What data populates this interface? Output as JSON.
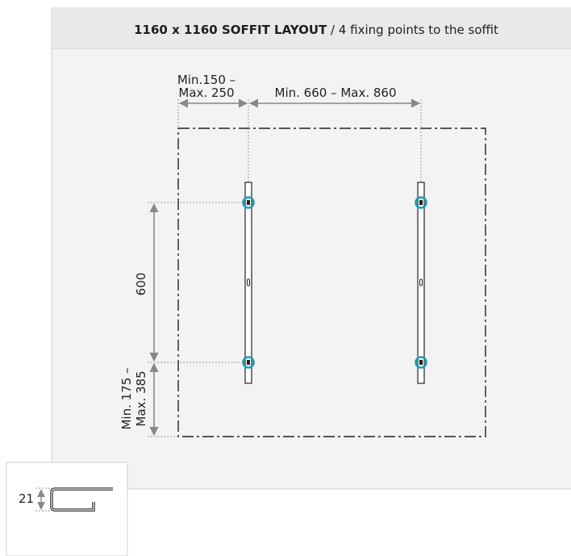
{
  "header": {
    "title": "1160 x 1160 SOFFIT LAYOUT",
    "separator": " / ",
    "subtitle": "4 fixing points to the soffit"
  },
  "dimensions": {
    "left_offset_line1": "Min.150 –",
    "left_offset_line2": "Max. 250",
    "rail_spacing": "Min. 660 – Max. 860",
    "vertical_spacing": "600",
    "bottom_offset_line1": "Min. 175 –",
    "bottom_offset_line2": "Max. 385"
  },
  "profile_detail": {
    "height_label": "21"
  },
  "colors": {
    "fixing_point": "#1f9bb0",
    "panel_bg": "#f3f3f3",
    "header_bg": "#e9e9e9",
    "arrow": "#888888",
    "line": "#222222"
  }
}
